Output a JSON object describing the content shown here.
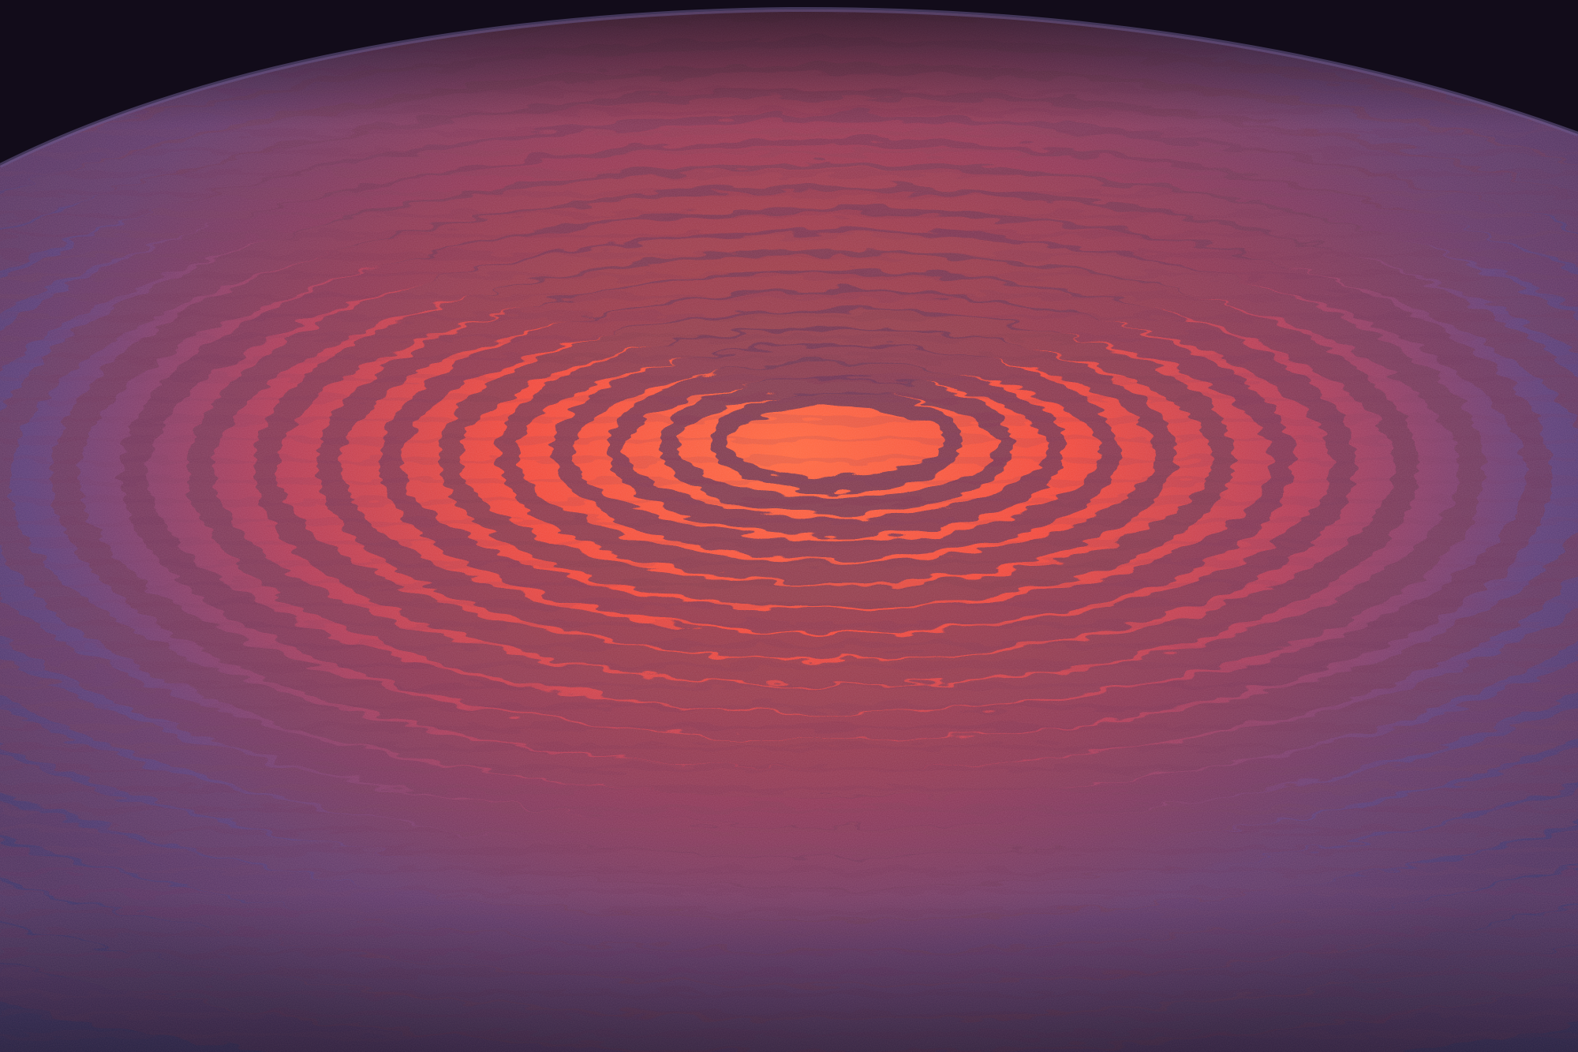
{
  "photo": {
    "subject": "interference-rings",
    "colors": {
      "background_dark": "#120c1a",
      "screen_violet": "#4a3f78",
      "screen_edge": "#2a2346",
      "fringe_bright": "#ff5a3c",
      "fringe_mid": "#e0443a",
      "fringe_dark": "#6a3552",
      "speckle_pink": "#ff86b8"
    }
  }
}
